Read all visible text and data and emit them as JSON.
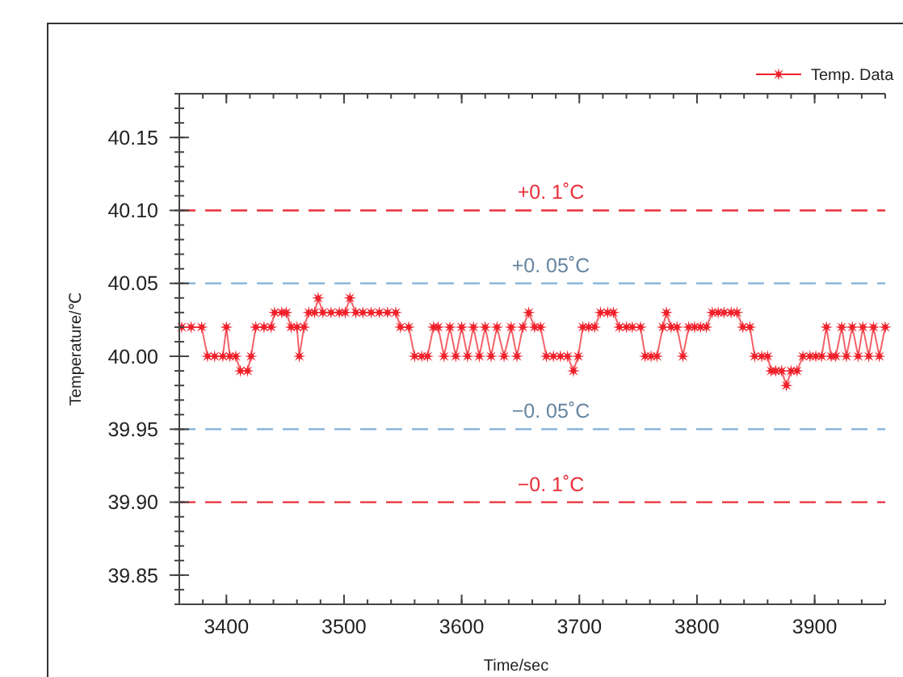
{
  "chart_data": {
    "type": "line",
    "xlabel": "Time/sec",
    "ylabel": "Temperature/℃",
    "xlim": [
      3360,
      3960
    ],
    "xticks": [
      3400,
      3500,
      3600,
      3700,
      3800,
      3900
    ],
    "ylim": [
      39.83,
      40.18
    ],
    "yticks": [
      39.85,
      {
        "value": 39.9,
        "label": "39.90"
      },
      39.95,
      {
        "value": 40.0,
        "label": "40.00"
      },
      40.05,
      {
        "value": 40.1,
        "label": "40.10"
      },
      40.15
    ],
    "grid": false,
    "legend": "top right",
    "marker": "star",
    "line_style": "solid",
    "ref_lines": [
      {
        "axis": "y",
        "value": 40.1,
        "label": "+0. 1˚C",
        "color": "#e8303a",
        "line_style": "dashed"
      },
      {
        "axis": "y",
        "value": 40.05,
        "label": "+0. 05˚C",
        "color": "#8cb8dc",
        "line_style": "dashed"
      },
      {
        "axis": "y",
        "value": 39.95,
        "label": "−0. 05˚C",
        "color": "#8cb8dc",
        "line_style": "dashed"
      },
      {
        "axis": "y",
        "value": 39.9,
        "label": "−0. 1˚C",
        "color": "#e8303a",
        "line_style": "dashed"
      }
    ],
    "series": [
      {
        "name": "Temp. Data",
        "color": "#f0202a",
        "x": [
          3362,
          3370,
          3379,
          3384,
          3390,
          3397,
          3400,
          3403,
          3408,
          3412,
          3418,
          3421,
          3425,
          3432,
          3438,
          3441,
          3447,
          3451,
          3455,
          3460,
          3462,
          3466,
          3470,
          3475,
          3478,
          3482,
          3489,
          3496,
          3501,
          3505,
          3510,
          3516,
          3523,
          3530,
          3537,
          3544,
          3548,
          3555,
          3560,
          3566,
          3571,
          3576,
          3580,
          3585,
          3590,
          3595,
          3600,
          3605,
          3610,
          3615,
          3620,
          3625,
          3630,
          3636,
          3642,
          3647,
          3652,
          3657,
          3662,
          3667,
          3672,
          3678,
          3684,
          3690,
          3695,
          3699,
          3703,
          3708,
          3713,
          3718,
          3724,
          3729,
          3734,
          3740,
          3745,
          3752,
          3756,
          3761,
          3766,
          3771,
          3774,
          3778,
          3783,
          3788,
          3793,
          3798,
          3803,
          3808,
          3813,
          3818,
          3823,
          3829,
          3834,
          3839,
          3845,
          3849,
          3855,
          3860,
          3863,
          3867,
          3872,
          3876,
          3880,
          3885,
          3890,
          3896,
          3901,
          3906,
          3910,
          3914,
          3918,
          3923,
          3927,
          3932,
          3937,
          3941,
          3946,
          3950,
          3955,
          3960
        ],
        "values": [
          40.02,
          40.02,
          40.02,
          40.0,
          40.0,
          40.0,
          40.02,
          40.0,
          40.0,
          39.99,
          39.99,
          40.0,
          40.02,
          40.02,
          40.02,
          40.03,
          40.03,
          40.03,
          40.02,
          40.02,
          40.0,
          40.02,
          40.03,
          40.03,
          40.04,
          40.03,
          40.03,
          40.03,
          40.03,
          40.04,
          40.03,
          40.03,
          40.03,
          40.03,
          40.03,
          40.03,
          40.02,
          40.02,
          40.0,
          40.0,
          40.0,
          40.02,
          40.02,
          40.0,
          40.02,
          40.0,
          40.02,
          40.0,
          40.02,
          40.0,
          40.02,
          40.0,
          40.02,
          40.0,
          40.02,
          40.0,
          40.02,
          40.03,
          40.02,
          40.02,
          40.0,
          40.0,
          40.0,
          40.0,
          39.99,
          40.0,
          40.02,
          40.02,
          40.02,
          40.03,
          40.03,
          40.03,
          40.02,
          40.02,
          40.02,
          40.02,
          40.0,
          40.0,
          40.0,
          40.02,
          40.03,
          40.02,
          40.02,
          40.0,
          40.02,
          40.02,
          40.02,
          40.02,
          40.03,
          40.03,
          40.03,
          40.03,
          40.03,
          40.02,
          40.02,
          40.0,
          40.0,
          40.0,
          39.99,
          39.99,
          39.99,
          39.98,
          39.99,
          39.99,
          40.0,
          40.0,
          40.0,
          40.0,
          40.02,
          40.0,
          40.0,
          40.02,
          40.0,
          40.02,
          40.0,
          40.02,
          40.0,
          40.02,
          40.0,
          40.02
        ]
      }
    ]
  }
}
